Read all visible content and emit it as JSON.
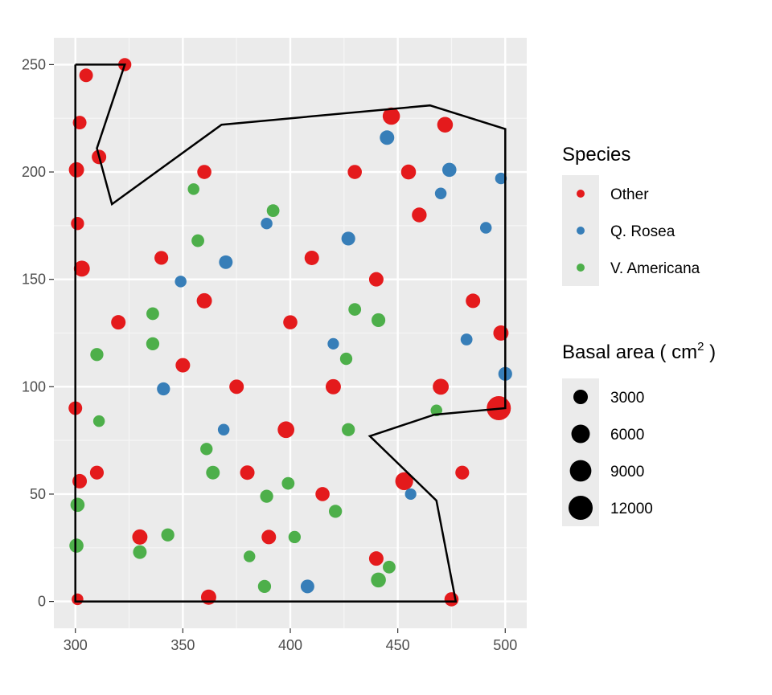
{
  "chart_data": {
    "type": "scatter",
    "title": "",
    "xlabel": "",
    "ylabel": "",
    "xlim": [
      290,
      510
    ],
    "ylim": [
      -12.5,
      262.5
    ],
    "x_ticks": [
      300,
      350,
      400,
      450,
      500
    ],
    "y_ticks": [
      0,
      50,
      100,
      150,
      200,
      250
    ],
    "x_tick_labels": [
      "300",
      "350",
      "400",
      "450",
      "500"
    ],
    "y_tick_labels": [
      "0",
      "50",
      "100",
      "150",
      "200",
      "250"
    ],
    "grid": true,
    "legend_position": "right",
    "legend": {
      "color_title": "Species",
      "color_entries": [
        {
          "label": "Other",
          "color": "#E41A1C"
        },
        {
          "label": "Q. Rosea",
          "color": "#377EB8"
        },
        {
          "label": "V. Americana",
          "color": "#4DAF4A"
        }
      ],
      "size_title_main": "Basal area ( cm",
      "size_title_sup": "2",
      "size_title_end": " )",
      "size_entries": [
        {
          "label": "3000",
          "value": 3000
        },
        {
          "label": "6000",
          "value": 6000
        },
        {
          "label": "9000",
          "value": 9000
        },
        {
          "label": "12000",
          "value": 12000
        }
      ]
    },
    "boundary_polygon": [
      [
        300,
        250
      ],
      [
        323,
        250
      ],
      [
        310,
        211
      ],
      [
        317,
        185
      ],
      [
        368,
        222
      ],
      [
        465,
        231
      ],
      [
        500,
        220
      ],
      [
        500,
        90
      ],
      [
        467,
        87
      ],
      [
        437,
        77
      ],
      [
        468,
        47
      ],
      [
        477,
        0
      ],
      [
        300,
        0
      ],
      [
        300,
        250
      ]
    ],
    "series": [
      {
        "name": "Other",
        "color": "#E41A1C",
        "points": [
          [
            300.5,
            201,
            3500
          ],
          [
            302,
            223,
            2500
          ],
          [
            301,
            176,
            2200
          ],
          [
            303,
            155,
            4000
          ],
          [
            300,
            90,
            2500
          ],
          [
            302,
            56,
            3000
          ],
          [
            301,
            1,
            1500
          ],
          [
            497,
            90,
            12000
          ],
          [
            498,
            125,
            3500
          ],
          [
            453,
            56,
            5500
          ],
          [
            447,
            226,
            5000
          ],
          [
            472,
            222,
            3800
          ],
          [
            323,
            250,
            2200
          ],
          [
            305,
            245,
            2500
          ],
          [
            311,
            207,
            3000
          ],
          [
            475,
            1,
            2800
          ],
          [
            362,
            2,
            3500
          ],
          [
            398,
            80,
            4500
          ],
          [
            420,
            100,
            3500
          ],
          [
            360,
            140,
            3500
          ],
          [
            430,
            200,
            2800
          ],
          [
            470,
            100,
            4000
          ],
          [
            330,
            30,
            3500
          ],
          [
            380,
            60,
            3000
          ],
          [
            410,
            160,
            3000
          ],
          [
            350,
            110,
            3000
          ],
          [
            440,
            150,
            3000
          ],
          [
            320,
            130,
            3000
          ],
          [
            460,
            180,
            3200
          ],
          [
            390,
            30,
            3000
          ],
          [
            480,
            60,
            2600
          ],
          [
            440,
            20,
            3000
          ],
          [
            360,
            200,
            2800
          ],
          [
            400,
            130,
            2800
          ],
          [
            455,
            200,
            3300
          ],
          [
            340,
            160,
            2600
          ],
          [
            375,
            100,
            3000
          ],
          [
            415,
            50,
            2800
          ],
          [
            485,
            140,
            3000
          ],
          [
            310,
            60,
            2600
          ]
        ]
      },
      {
        "name": "Q. Rosea",
        "color": "#377EB8",
        "points": [
          [
            445,
            216,
            3000
          ],
          [
            474,
            201,
            2800
          ],
          [
            427,
            169,
            2600
          ],
          [
            500,
            106,
            2600
          ],
          [
            370,
            158,
            2500
          ],
          [
            341,
            99,
            2200
          ],
          [
            408,
            7,
            2500
          ],
          [
            349,
            149,
            1500
          ],
          [
            369,
            80,
            1500
          ],
          [
            389,
            176,
            1500
          ],
          [
            491,
            174,
            1500
          ],
          [
            470,
            190,
            1500
          ],
          [
            498,
            197,
            1500
          ],
          [
            482,
            122,
            1600
          ],
          [
            420,
            120,
            1400
          ],
          [
            456,
            50,
            1400
          ]
        ]
      },
      {
        "name": "V. Americana",
        "color": "#4DAF4A",
        "points": [
          [
            300.5,
            26,
            2800
          ],
          [
            301,
            45,
            2800
          ],
          [
            441,
            10,
            3300
          ],
          [
            441,
            131,
            2600
          ],
          [
            364,
            60,
            2500
          ],
          [
            392,
            182,
            2000
          ],
          [
            355,
            192,
            1500
          ],
          [
            310,
            115,
            2200
          ],
          [
            336,
            120,
            2200
          ],
          [
            343,
            31,
            2200
          ],
          [
            330,
            23,
            2500
          ],
          [
            381,
            21,
            1500
          ],
          [
            388,
            7,
            2200
          ],
          [
            427,
            80,
            2200
          ],
          [
            421,
            42,
            2200
          ],
          [
            389,
            49,
            2200
          ],
          [
            399,
            55,
            2000
          ],
          [
            446,
            16,
            2000
          ],
          [
            430,
            136,
            2000
          ],
          [
            426,
            113,
            1800
          ],
          [
            468,
            89,
            1500
          ],
          [
            311,
            84,
            1500
          ],
          [
            357,
            168,
            2000
          ],
          [
            336,
            134,
            2000
          ],
          [
            361,
            71,
            1800
          ],
          [
            402,
            30,
            1800
          ]
        ]
      }
    ]
  }
}
